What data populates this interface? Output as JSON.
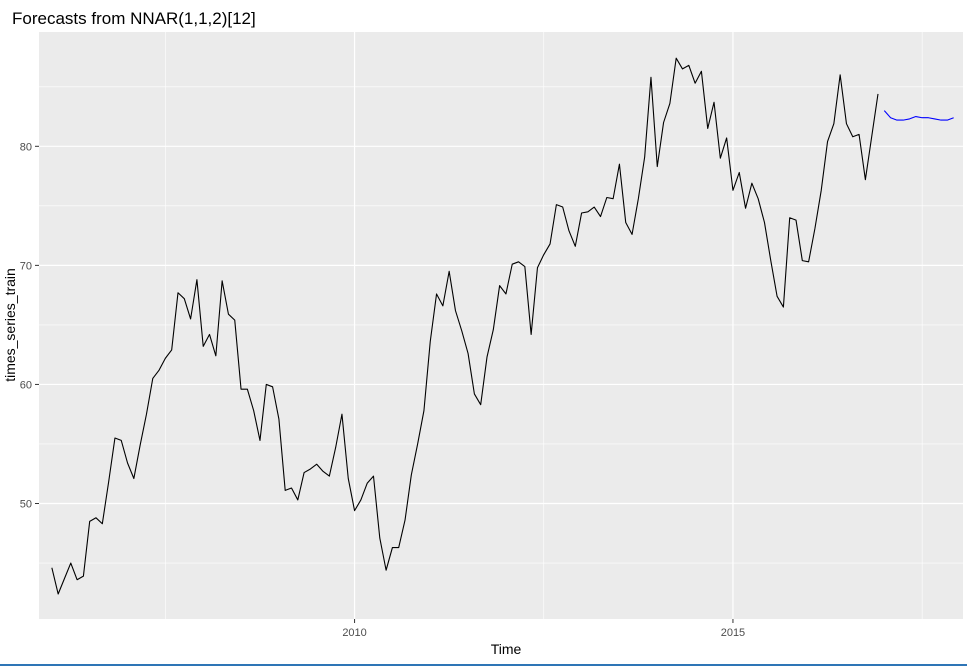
{
  "chart_data": {
    "type": "line",
    "title": "Forecasts from NNAR(1,1,2)[12]",
    "xlabel": "Time",
    "ylabel": "times_series_train",
    "xlim": [
      2005.83,
      2018.04
    ],
    "ylim": [
      40.3,
      89.6
    ],
    "x_ticks": [
      2010,
      2015
    ],
    "y_ticks": [
      50,
      60,
      70,
      80
    ],
    "grid": true,
    "legend": "none",
    "colors": {
      "panel": "#ebebeb",
      "grid": "#ffffff",
      "observed": "#000000",
      "forecast": "#0000ff"
    },
    "series": [
      {
        "role": "observed",
        "start": 2006.0,
        "frequency": 12,
        "values": [
          44.6,
          42.4,
          43.7,
          45.0,
          43.6,
          43.9,
          48.5,
          48.8,
          48.3,
          51.8,
          55.5,
          55.3,
          53.4,
          52.1,
          54.9,
          57.5,
          60.5,
          61.2,
          62.2,
          62.9,
          67.7,
          67.2,
          65.5,
          68.8,
          63.2,
          64.2,
          62.4,
          68.7,
          65.9,
          65.4,
          59.6,
          59.6,
          57.8,
          55.3,
          60.0,
          59.8,
          57.1,
          51.1,
          51.3,
          50.3,
          52.6,
          52.9,
          53.3,
          52.7,
          52.3,
          54.7,
          57.5,
          52.1,
          49.4,
          50.3,
          51.7,
          52.3,
          47.1,
          44.4,
          46.3,
          46.3,
          48.6,
          52.4,
          55.0,
          57.8,
          63.6,
          67.6,
          66.6,
          69.5,
          66.2,
          64.5,
          62.6,
          59.2,
          58.3,
          62.3,
          64.6,
          68.3,
          67.6,
          70.1,
          70.3,
          69.9,
          64.2,
          69.8,
          70.9,
          71.8,
          75.1,
          74.9,
          72.9,
          71.6,
          74.4,
          74.5,
          74.9,
          74.1,
          75.7,
          75.6,
          78.5,
          73.6,
          72.6,
          75.6,
          79.1,
          85.8,
          78.3,
          82.0,
          83.6,
          87.4,
          86.5,
          86.8,
          85.3,
          86.3,
          81.5,
          83.7,
          79.0,
          80.7,
          76.3,
          77.8,
          74.8,
          76.9,
          75.6,
          73.6,
          70.4,
          67.4,
          66.5,
          74.0,
          73.8,
          70.4,
          70.3,
          73.1,
          76.3,
          80.4,
          81.9,
          86.0,
          81.9,
          80.8,
          81.0,
          77.2,
          80.8,
          84.4
        ]
      },
      {
        "role": "forecast",
        "start": 2017.0,
        "frequency": 12,
        "values": [
          83.0,
          82.4,
          82.2,
          82.2,
          82.3,
          82.5,
          82.4,
          82.4,
          82.3,
          82.2,
          82.2,
          82.4
        ]
      }
    ]
  }
}
